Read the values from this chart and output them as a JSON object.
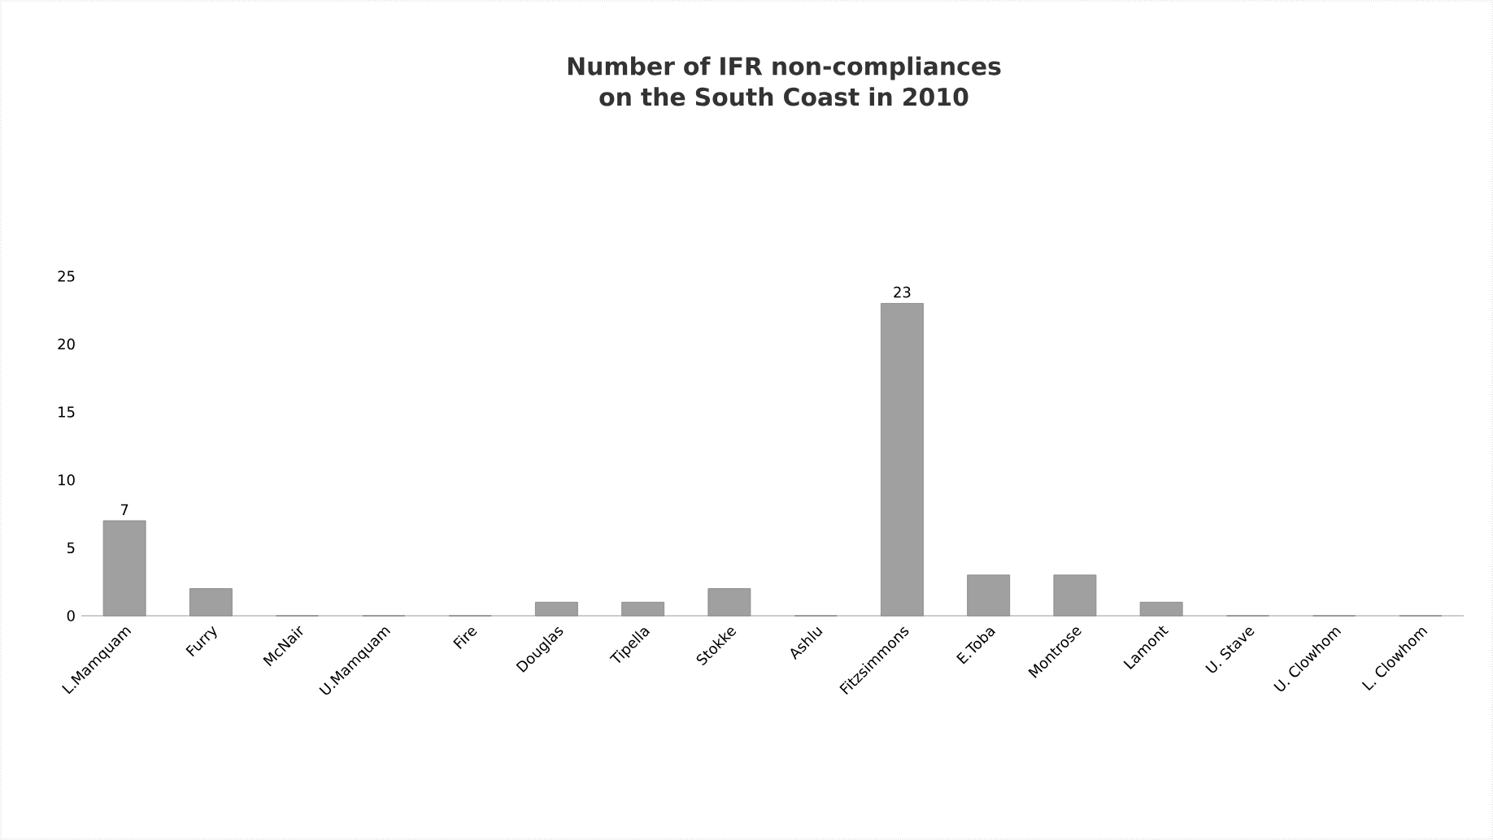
{
  "chart_data": {
    "type": "bar",
    "title": "Number of IFR non-compliances on the South Coast in 2010",
    "categories": [
      "L.Mamquam",
      "Furry",
      "McNair",
      "U.Mamquam",
      "Fire",
      "Douglas",
      "Tipella",
      "Stokke",
      "Ashlu",
      "Fitzsimmons",
      "E.Toba",
      "Montrose",
      "Lamont",
      "U. Stave",
      "U. Clowhom",
      "L. Clowhom"
    ],
    "values": [
      7,
      2,
      0,
      0,
      0,
      1,
      1,
      2,
      0,
      23,
      3,
      3,
      1,
      0,
      0,
      0
    ],
    "value_labels": [
      "7",
      null,
      null,
      null,
      null,
      null,
      null,
      null,
      null,
      "23",
      null,
      null,
      null,
      null,
      null,
      null
    ],
    "color": "#a0a0a0",
    "ylim": [
      0,
      25
    ],
    "yticks": [
      0,
      5,
      10,
      15,
      20,
      25
    ]
  }
}
